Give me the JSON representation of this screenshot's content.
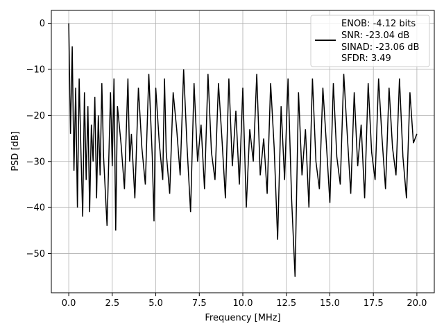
{
  "chart_data": {
    "type": "line",
    "title": "",
    "xlabel": "Frequency [MHz]",
    "ylabel": "PSD [dB]",
    "xlim": [
      -1.0,
      21.0
    ],
    "ylim": [
      -58.5,
      2.8
    ],
    "xticks": [
      0.0,
      2.5,
      5.0,
      7.5,
      10.0,
      12.5,
      15.0,
      17.5,
      20.0
    ],
    "xtick_labels": [
      "0.0",
      "2.5",
      "5.0",
      "7.5",
      "10.0",
      "12.5",
      "15.0",
      "17.5",
      "20.0"
    ],
    "yticks": [
      0,
      -10,
      -20,
      -30,
      -40,
      -50
    ],
    "ytick_labels": [
      "0",
      "−10",
      "−20",
      "−30",
      "−40",
      "−50"
    ],
    "grid": true,
    "legend_position": "top-right",
    "legend_lines": [
      "ENOB: -4.12 bits",
      "SNR: -23.04 dB",
      "SINAD: -23.06 dB",
      "SFDR: 3.49"
    ],
    "series": [
      {
        "color": "#000000",
        "x": [
          0.0,
          0.1,
          0.2,
          0.3,
          0.4,
          0.5,
          0.6,
          0.7,
          0.8,
          0.9,
          1.0,
          1.1,
          1.2,
          1.3,
          1.4,
          1.5,
          1.6,
          1.7,
          1.8,
          1.9,
          2.0,
          2.2,
          2.4,
          2.5,
          2.6,
          2.7,
          2.8,
          3.0,
          3.2,
          3.4,
          3.5,
          3.6,
          3.8,
          4.0,
          4.2,
          4.4,
          4.6,
          4.8,
          4.9,
          5.0,
          5.2,
          5.4,
          5.5,
          5.6,
          5.8,
          6.0,
          6.2,
          6.4,
          6.6,
          6.8,
          7.0,
          7.2,
          7.4,
          7.6,
          7.8,
          8.0,
          8.2,
          8.4,
          8.6,
          8.8,
          9.0,
          9.2,
          9.4,
          9.6,
          9.8,
          10.0,
          10.2,
          10.4,
          10.6,
          10.8,
          11.0,
          11.2,
          11.4,
          11.6,
          11.8,
          12.0,
          12.2,
          12.4,
          12.6,
          12.8,
          13.0,
          13.2,
          13.4,
          13.6,
          13.8,
          14.0,
          14.2,
          14.4,
          14.6,
          14.8,
          15.0,
          15.2,
          15.4,
          15.6,
          15.8,
          16.0,
          16.2,
          16.4,
          16.6,
          16.8,
          17.0,
          17.2,
          17.4,
          17.6,
          17.8,
          18.0,
          18.2,
          18.4,
          18.6,
          18.8,
          19.0,
          19.2,
          19.4,
          19.6,
          19.8,
          20.0
        ],
        "y": [
          0.0,
          -24,
          -5,
          -32,
          -14,
          -40,
          -12,
          -28,
          -42,
          -15,
          -34,
          -18,
          -41,
          -22,
          -30,
          -16,
          -38,
          -20,
          -33,
          -13,
          -29,
          -44,
          -15,
          -31,
          -12,
          -45,
          -18,
          -26,
          -36,
          -12,
          -30,
          -24,
          -38,
          -14,
          -27,
          -35,
          -11,
          -29,
          -43,
          -14,
          -26,
          -34,
          -12,
          -28,
          -37,
          -15,
          -23,
          -33,
          -10,
          -27,
          -41,
          -13,
          -30,
          -22,
          -36,
          -11,
          -28,
          -34,
          -13,
          -25,
          -38,
          -12,
          -31,
          -19,
          -35,
          -14,
          -40,
          -23,
          -30,
          -11,
          -33,
          -25,
          -37,
          -13,
          -27,
          -47,
          -18,
          -34,
          -12,
          -38,
          -55,
          -15,
          -33,
          -23,
          -40,
          -12,
          -30,
          -36,
          -14,
          -26,
          -39,
          -13,
          -29,
          -35,
          -11,
          -24,
          -37,
          -15,
          -31,
          -22,
          -38,
          -13,
          -28,
          -34,
          -12,
          -25,
          -36,
          -14,
          -27,
          -33,
          -12,
          -29,
          -38,
          -15,
          -26,
          -24
        ]
      }
    ]
  }
}
